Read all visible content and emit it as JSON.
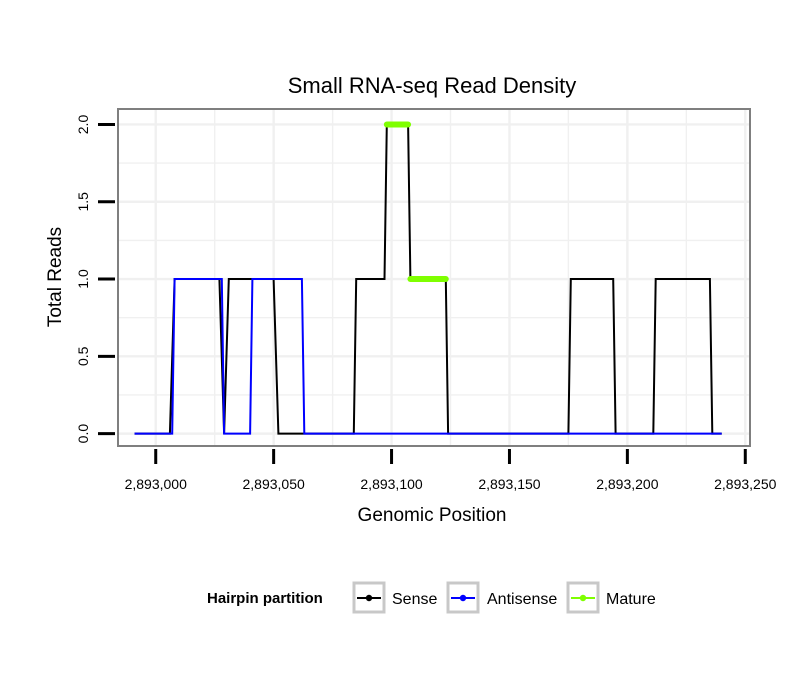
{
  "chart_data": {
    "type": "line",
    "title": "Small RNA-seq Read Density",
    "xlabel": "Genomic Position",
    "ylabel": "Total Reads",
    "xlim": [
      2892984,
      2893252
    ],
    "ylim": [
      -0.08,
      2.1
    ],
    "x_ticks": [
      2893000,
      2893050,
      2893100,
      2893150,
      2893200,
      2893250
    ],
    "x_tick_labels": [
      "2,893,000",
      "2,893,050",
      "2,893,100",
      "2,893,150",
      "2,893,200",
      "2,893,250"
    ],
    "y_ticks": [
      0,
      0.5,
      1,
      1.5,
      2
    ],
    "y_tick_labels": [
      "0.0",
      "0.5",
      "1.0",
      "1.5",
      "2.0"
    ],
    "grid": true,
    "legend": {
      "title": "Hairpin partition",
      "position": "bottom",
      "entries": [
        "Sense",
        "Antisense",
        "Mature"
      ]
    },
    "series": [
      {
        "name": "Sense",
        "color": "#000000",
        "x": [
          2892991,
          2893006,
          2893008,
          2893027,
          2893029,
          2893031,
          2893050,
          2893052,
          2893084,
          2893085,
          2893097,
          2893098,
          2893107,
          2893108,
          2893123,
          2893124,
          2893175,
          2893176,
          2893194,
          2893195,
          2893211,
          2893212,
          2893235,
          2893236,
          2893240
        ],
        "y": [
          0,
          0,
          1,
          1,
          0,
          1,
          1,
          0,
          0,
          1,
          1,
          2,
          2,
          1,
          1,
          0,
          0,
          1,
          1,
          0,
          0,
          1,
          1,
          0,
          0
        ]
      },
      {
        "name": "Antisense",
        "color": "#0000ff",
        "x": [
          2892991,
          2893007,
          2893008,
          2893028,
          2893029,
          2893040,
          2893041,
          2893062,
          2893063,
          2893240
        ],
        "y": [
          0,
          0,
          1,
          1,
          0,
          0,
          1,
          1,
          0,
          0
        ]
      },
      {
        "name": "Mature",
        "color": "#7fff00",
        "segments": [
          {
            "x": [
              2893098,
              2893107
            ],
            "y": [
              2,
              2
            ]
          },
          {
            "x": [
              2893108,
              2893123
            ],
            "y": [
              1,
              1
            ]
          }
        ]
      }
    ]
  }
}
